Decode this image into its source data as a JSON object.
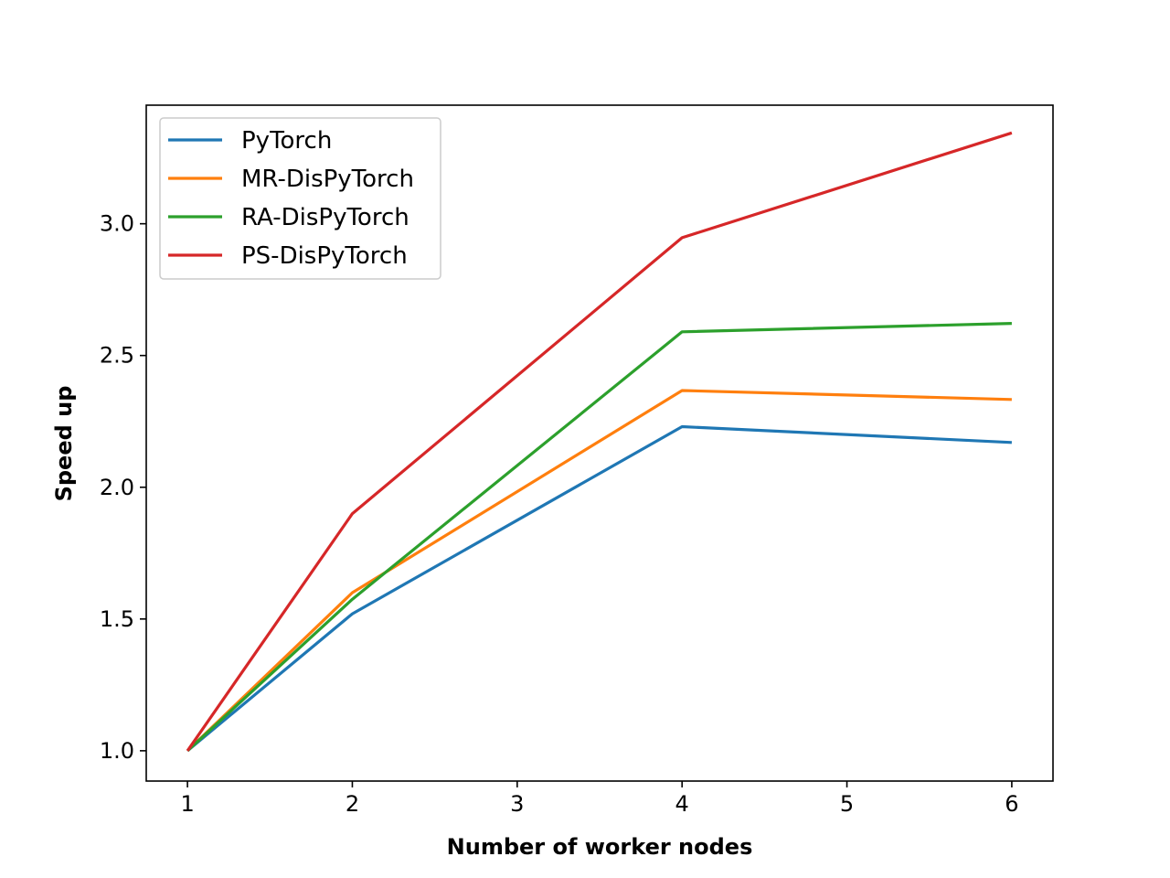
{
  "chart_data": {
    "type": "line",
    "title": "",
    "xlabel": "Number of worker nodes",
    "ylabel": "Speed up",
    "x": [
      1,
      2,
      4,
      6
    ],
    "xlim": [
      0.75,
      6.25
    ],
    "ylim": [
      0.885,
      3.45
    ],
    "xticks": [
      1,
      2,
      3,
      4,
      5,
      6
    ],
    "yticks": [
      "1.0",
      "1.5",
      "2.0",
      "2.5",
      "3.0"
    ],
    "grid": false,
    "legend_position": "top-left",
    "series": [
      {
        "name": "PyTorch",
        "color": "#1f77b4",
        "values": [
          1.0,
          1.52,
          2.23,
          2.17
        ]
      },
      {
        "name": "MR-DisPyTorch",
        "color": "#ff7f0e",
        "values": [
          1.0,
          1.6,
          2.367,
          2.333
        ]
      },
      {
        "name": "RA-DisPyTorch",
        "color": "#2ca02c",
        "values": [
          1.0,
          1.575,
          2.59,
          2.622
        ]
      },
      {
        "name": "PS-DisPyTorch",
        "color": "#d62728",
        "values": [
          1.0,
          1.9,
          2.947,
          3.345
        ]
      }
    ]
  }
}
